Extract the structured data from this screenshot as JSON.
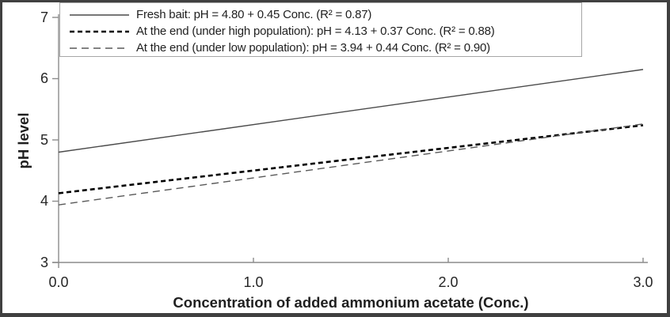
{
  "chart_data": {
    "type": "line",
    "title": "",
    "xlabel": "Concentration of added ammonium acetate (Conc.)",
    "ylabel": "pH level",
    "xlim": [
      0.0,
      3.0
    ],
    "ylim": [
      3,
      7
    ],
    "x_ticks": [
      "0.0",
      "1.0",
      "2.0",
      "3.0"
    ],
    "y_ticks": [
      "3",
      "4",
      "5",
      "6",
      "7"
    ],
    "grid": false,
    "legend_position": "top-left",
    "axis_color": "#8c8c8c",
    "text_color": "#1f1f1f",
    "legend_border_color": "#a6a6a6",
    "frame_border_color": "#404040",
    "background_color": "#ffffff",
    "series": [
      {
        "name": "Fresh bait: pH = 4.80 + 0.45 Conc. (R² = 0.87)",
        "intercept": 4.8,
        "slope": 0.45,
        "r2": 0.87,
        "x_range": [
          0.0,
          3.0
        ],
        "endpoints_pH": [
          4.8,
          6.15
        ],
        "line_style": "solid",
        "color": "#4a4a4a",
        "width": 1.4,
        "dash": ""
      },
      {
        "name": "At the end (under high population): pH = 4.13 + 0.37 Conc. (R² = 0.88)",
        "intercept": 4.13,
        "slope": 0.37,
        "r2": 0.88,
        "x_range": [
          0.0,
          3.0
        ],
        "endpoints_pH": [
          4.13,
          5.24
        ],
        "line_style": "dashed-thick",
        "color": "#000000",
        "width": 2.6,
        "dash": "6 4"
      },
      {
        "name": "At the end (under low population): pH = 3.94 + 0.44 Conc. (R² = 0.90)",
        "intercept": 3.94,
        "slope": 0.44,
        "r2": 0.9,
        "x_range": [
          0.0,
          3.0
        ],
        "endpoints_pH": [
          3.94,
          5.26
        ],
        "line_style": "dashed-thin",
        "color": "#595959",
        "width": 1.4,
        "dash": "9 6"
      }
    ]
  }
}
